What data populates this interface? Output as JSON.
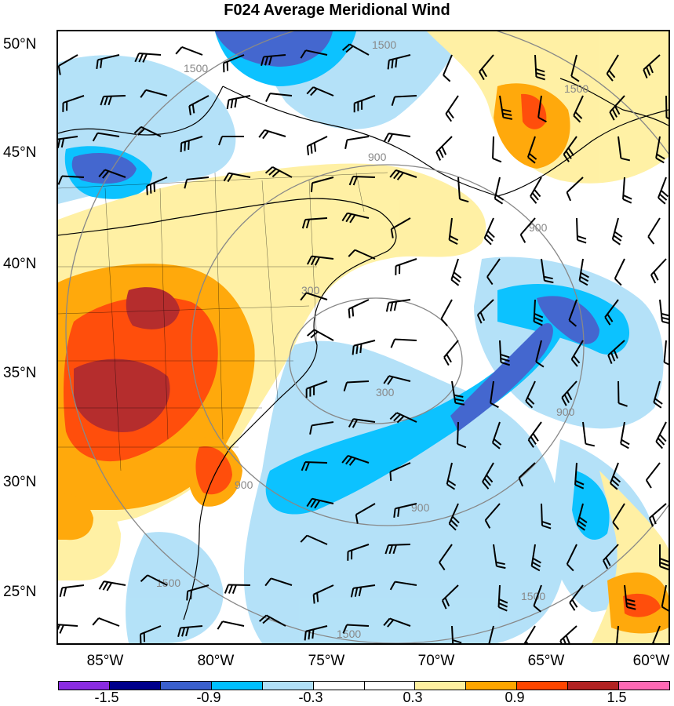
{
  "title": "F024 Average Meridional Wind",
  "lat_labels": [
    "50°N",
    "45°N",
    "40°N",
    "35°N",
    "30°N",
    "25°N"
  ],
  "lon_labels": [
    "85°W",
    "80°W",
    "75°W",
    "70°W",
    "65°W",
    "60°W"
  ],
  "contour_labels": [
    "1500",
    "1500",
    "1500",
    "1500",
    "1500",
    "1500",
    "900",
    "900",
    "900",
    "900",
    "300",
    "300",
    "900"
  ],
  "colorbar": {
    "colors": [
      "#8a2be2",
      "#00008b",
      "#3a5fcd",
      "#00bfff",
      "#b0e0f8",
      "#ffffff",
      "#ffffff",
      "#fff0a0",
      "#ffa500",
      "#ff4500",
      "#b22222",
      "#ff69b4"
    ],
    "labels": [
      "-1.5",
      "-0.9",
      "-0.3",
      "0.3",
      "0.9",
      "1.5"
    ]
  }
}
